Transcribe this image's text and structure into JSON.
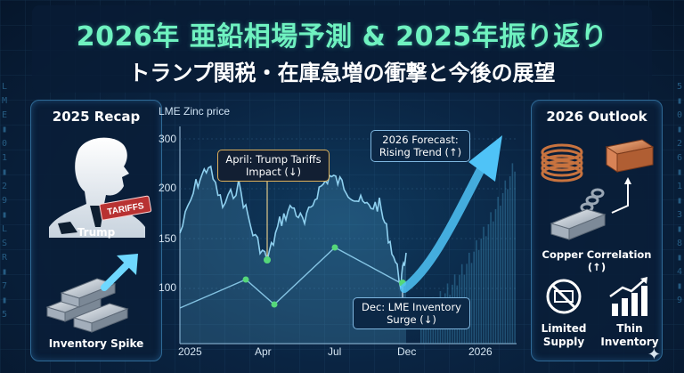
{
  "title": {
    "main": "2026年 亜鉛相場予測 & 2025年振り返り",
    "sub": "トランプ関税・在庫急増の衝撃と今後の展望"
  },
  "left_panel": {
    "title": "2025 Recap",
    "items": [
      {
        "label": "Trump",
        "badge": "TARIFFS",
        "icon": "trump-silhouette-icon"
      },
      {
        "label": "Inventory Spike",
        "icon": "silver-ingots-icon"
      }
    ]
  },
  "right_panel": {
    "title": "2026 Outlook",
    "items": [
      {
        "label": "Copper Correlation (↑)",
        "icon": "copper-coil-ingot-icon"
      },
      {
        "label": "Limited Supply",
        "icon": "limited-supply-icon"
      },
      {
        "label": "Thin Inventory",
        "icon": "bar-growth-icon"
      }
    ]
  },
  "chart_data": {
    "type": "line",
    "ylabel_title": "LME Zinc price",
    "y_ticks": [
      "300",
      "200",
      "150",
      "100"
    ],
    "x_ticks": [
      "2025",
      "Apr",
      "Jul",
      "Dec",
      "2026"
    ],
    "callouts": {
      "april": "April: Trump Tariffs Impact (↓)",
      "forecast": "2026 Forecast: Rising Trend (↑)",
      "dec": "Dec: LME Inventory Surge (↓)"
    },
    "colors": {
      "line": "#8fd0ef",
      "arrow": "#4fc3f7",
      "marker": "#55d77a"
    }
  }
}
